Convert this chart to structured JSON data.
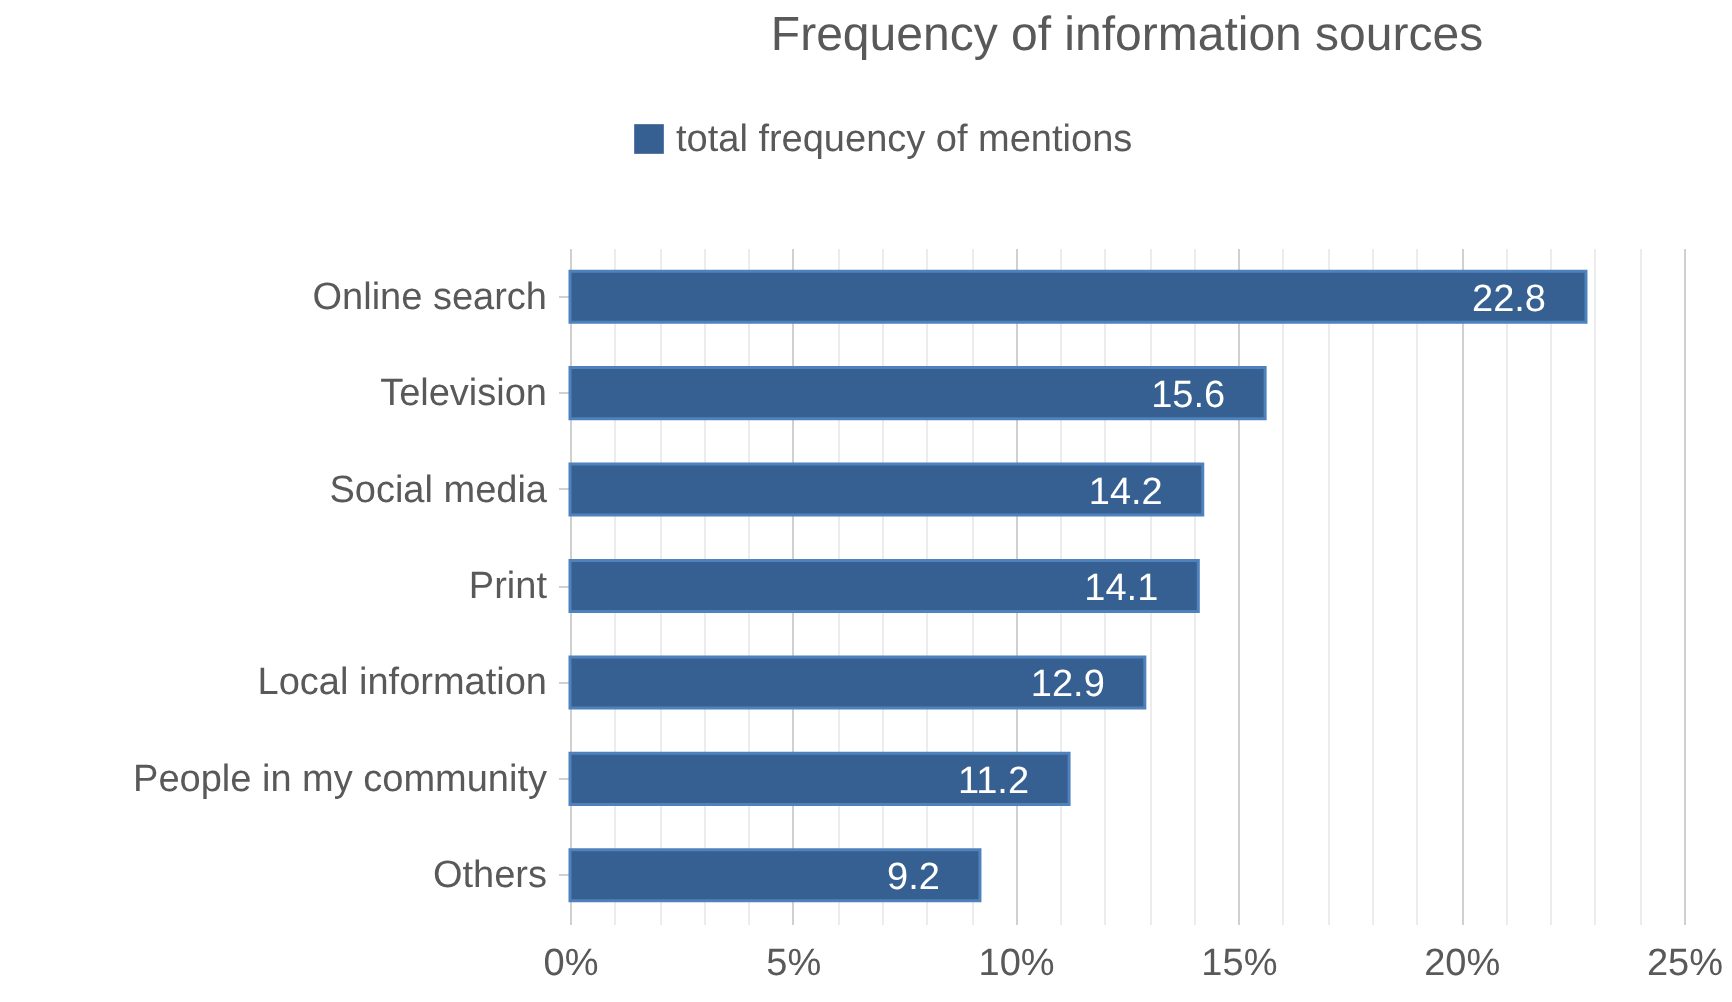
{
  "chart_data": {
    "type": "bar",
    "orientation": "horizontal",
    "title": "Frequency of information sources",
    "categories": [
      "Online search",
      "Television",
      "Social media",
      "Print",
      "Local information",
      "People in my community",
      "Others"
    ],
    "series": [
      {
        "name": "total frequency of mentions",
        "color": "#376092",
        "values": [
          22.8,
          15.6,
          14.2,
          14.1,
          12.9,
          11.2,
          9.2
        ]
      }
    ],
    "xlim": [
      0,
      25
    ],
    "xticks": [
      {
        "value": 0,
        "label": "0%"
      },
      {
        "value": 1,
        "label": null
      },
      {
        "value": 2,
        "label": null
      },
      {
        "value": 3,
        "label": null
      },
      {
        "value": 4,
        "label": null
      },
      {
        "value": 5,
        "label": "5%"
      },
      {
        "value": 6,
        "label": null
      },
      {
        "value": 7,
        "label": null
      },
      {
        "value": 8,
        "label": null
      },
      {
        "value": 9,
        "label": null
      },
      {
        "value": 10,
        "label": "10%"
      },
      {
        "value": 11,
        "label": null
      },
      {
        "value": 12,
        "label": null
      },
      {
        "value": 13,
        "label": null
      },
      {
        "value": 14,
        "label": null
      },
      {
        "value": 15,
        "label": "15%"
      },
      {
        "value": 16,
        "label": null
      },
      {
        "value": 17,
        "label": null
      },
      {
        "value": 18,
        "label": null
      },
      {
        "value": 19,
        "label": null
      },
      {
        "value": 20,
        "label": "20%"
      },
      {
        "value": 21,
        "label": null
      },
      {
        "value": 22,
        "label": null
      },
      {
        "value": 23,
        "label": null
      },
      {
        "value": 24,
        "label": null
      },
      {
        "value": 25,
        "label": "25%"
      }
    ],
    "grid": "x",
    "legend": "top",
    "data_labels": true
  }
}
